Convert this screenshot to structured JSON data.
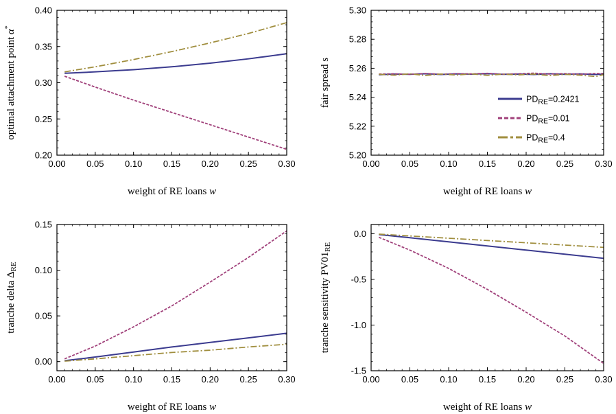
{
  "colors": {
    "blue": "#3b3b8f",
    "magenta": "#a0407a",
    "olive": "#a08e3e"
  },
  "legend": {
    "placement": "inside-right",
    "entries": [
      {
        "label": "PD",
        "sub": "RE",
        "value": "=0.2421",
        "style": "solid"
      },
      {
        "label": "PD",
        "sub": "RE",
        "value": "=0.01",
        "style": "dashed"
      },
      {
        "label": "PD",
        "sub": "RE",
        "value": "=0.4",
        "style": "dashdot"
      }
    ]
  },
  "chart_data": [
    {
      "type": "line",
      "xlabel": "weight of RE loans w",
      "ylabel": "optimal attachment point α*",
      "xlim": [
        0.0,
        0.3
      ],
      "ylim": [
        0.2,
        0.4
      ],
      "xticks": [
        "0.00",
        "0.05",
        "0.10",
        "0.15",
        "0.20",
        "0.25",
        "0.30"
      ],
      "yticks": [
        "0.20",
        "0.25",
        "0.30",
        "0.35",
        "0.40"
      ],
      "x": [
        0.01,
        0.05,
        0.1,
        0.15,
        0.2,
        0.25,
        0.3
      ],
      "series": [
        {
          "name": "PD_RE=0.2421",
          "style": "solid",
          "values": [
            0.313,
            0.315,
            0.318,
            0.322,
            0.327,
            0.333,
            0.34
          ]
        },
        {
          "name": "PD_RE=0.01",
          "style": "dashed",
          "values": [
            0.309,
            0.294,
            0.276,
            0.259,
            0.242,
            0.225,
            0.208
          ]
        },
        {
          "name": "PD_RE=0.4",
          "style": "dashdot",
          "values": [
            0.315,
            0.322,
            0.332,
            0.343,
            0.355,
            0.368,
            0.383
          ]
        }
      ]
    },
    {
      "type": "line",
      "xlabel": "weight of RE loans w",
      "ylabel": "fair spread s",
      "xlim": [
        0.0,
        0.3
      ],
      "ylim": [
        5.2,
        5.3
      ],
      "xticks": [
        "0.00",
        "0.05",
        "0.10",
        "0.15",
        "0.20",
        "0.25",
        "0.30"
      ],
      "yticks": [
        "5.20",
        "5.22",
        "5.24",
        "5.26",
        "5.28",
        "5.30"
      ],
      "x": [
        0.01,
        0.03,
        0.05,
        0.07,
        0.09,
        0.11,
        0.13,
        0.15,
        0.17,
        0.19,
        0.21,
        0.23,
        0.25,
        0.27,
        0.29,
        0.3
      ],
      "series": [
        {
          "name": "PD_RE=0.2421",
          "style": "solid",
          "values": [
            5.2555,
            5.256,
            5.2558,
            5.2562,
            5.2557,
            5.2561,
            5.2559,
            5.2563,
            5.2558,
            5.256,
            5.2557,
            5.2562,
            5.2558,
            5.2561,
            5.2557,
            5.256
          ]
        },
        {
          "name": "PD_RE=0.01",
          "style": "dashed",
          "values": [
            5.256,
            5.2562,
            5.2558,
            5.2564,
            5.2559,
            5.2563,
            5.2561,
            5.2565,
            5.2559,
            5.2562,
            5.2566,
            5.256,
            5.2563,
            5.2559,
            5.2564,
            5.2562
          ]
        },
        {
          "name": "PD_RE=0.4",
          "style": "dashdot",
          "values": [
            5.2558,
            5.2552,
            5.2562,
            5.255,
            5.256,
            5.2553,
            5.2561,
            5.2551,
            5.2559,
            5.2554,
            5.256,
            5.2549,
            5.2558,
            5.2552,
            5.2543,
            5.2556
          ]
        }
      ]
    },
    {
      "type": "line",
      "xlabel": "weight of RE loans w",
      "ylabel": "tranche delta Δ",
      "ylabel_sub": "RE",
      "xlim": [
        0.0,
        0.3
      ],
      "ylim": [
        -0.01,
        0.15
      ],
      "xticks": [
        "0.00",
        "0.05",
        "0.10",
        "0.15",
        "0.20",
        "0.25",
        "0.30"
      ],
      "yticks": [
        "0.00",
        "0.05",
        "0.10",
        "0.15"
      ],
      "x": [
        0.01,
        0.05,
        0.1,
        0.15,
        0.2,
        0.25,
        0.3
      ],
      "series": [
        {
          "name": "PD_RE=0.2421",
          "style": "solid",
          "values": [
            0.001,
            0.005,
            0.0105,
            0.016,
            0.021,
            0.026,
            0.031
          ]
        },
        {
          "name": "PD_RE=0.01",
          "style": "dashed",
          "values": [
            0.003,
            0.017,
            0.038,
            0.061,
            0.087,
            0.114,
            0.143
          ]
        },
        {
          "name": "PD_RE=0.4",
          "style": "dashdot",
          "values": [
            0.0005,
            0.003,
            0.0065,
            0.01,
            0.0125,
            0.016,
            0.019
          ]
        }
      ]
    },
    {
      "type": "line",
      "xlabel": "weight of RE loans w",
      "ylabel": "tranche sensitivity PV01",
      "ylabel_sub": "RE",
      "xlim": [
        0.0,
        0.3
      ],
      "ylim": [
        -1.5,
        0.1
      ],
      "xticks": [
        "0.00",
        "0.05",
        "0.10",
        "0.15",
        "0.20",
        "0.25",
        "0.30"
      ],
      "yticks": [
        "0.0",
        "-0.5",
        "-1.0",
        "-1.5"
      ],
      "x": [
        0.01,
        0.05,
        0.1,
        0.15,
        0.2,
        0.25,
        0.3
      ],
      "series": [
        {
          "name": "PD_RE=0.2421",
          "style": "solid",
          "values": [
            -0.01,
            -0.045,
            -0.09,
            -0.135,
            -0.18,
            -0.225,
            -0.27
          ]
        },
        {
          "name": "PD_RE=0.01",
          "style": "dashed",
          "values": [
            -0.04,
            -0.18,
            -0.38,
            -0.61,
            -0.86,
            -1.12,
            -1.42
          ]
        },
        {
          "name": "PD_RE=0.4",
          "style": "dashdot",
          "values": [
            -0.005,
            -0.025,
            -0.05,
            -0.075,
            -0.1,
            -0.125,
            -0.15
          ]
        }
      ]
    }
  ]
}
